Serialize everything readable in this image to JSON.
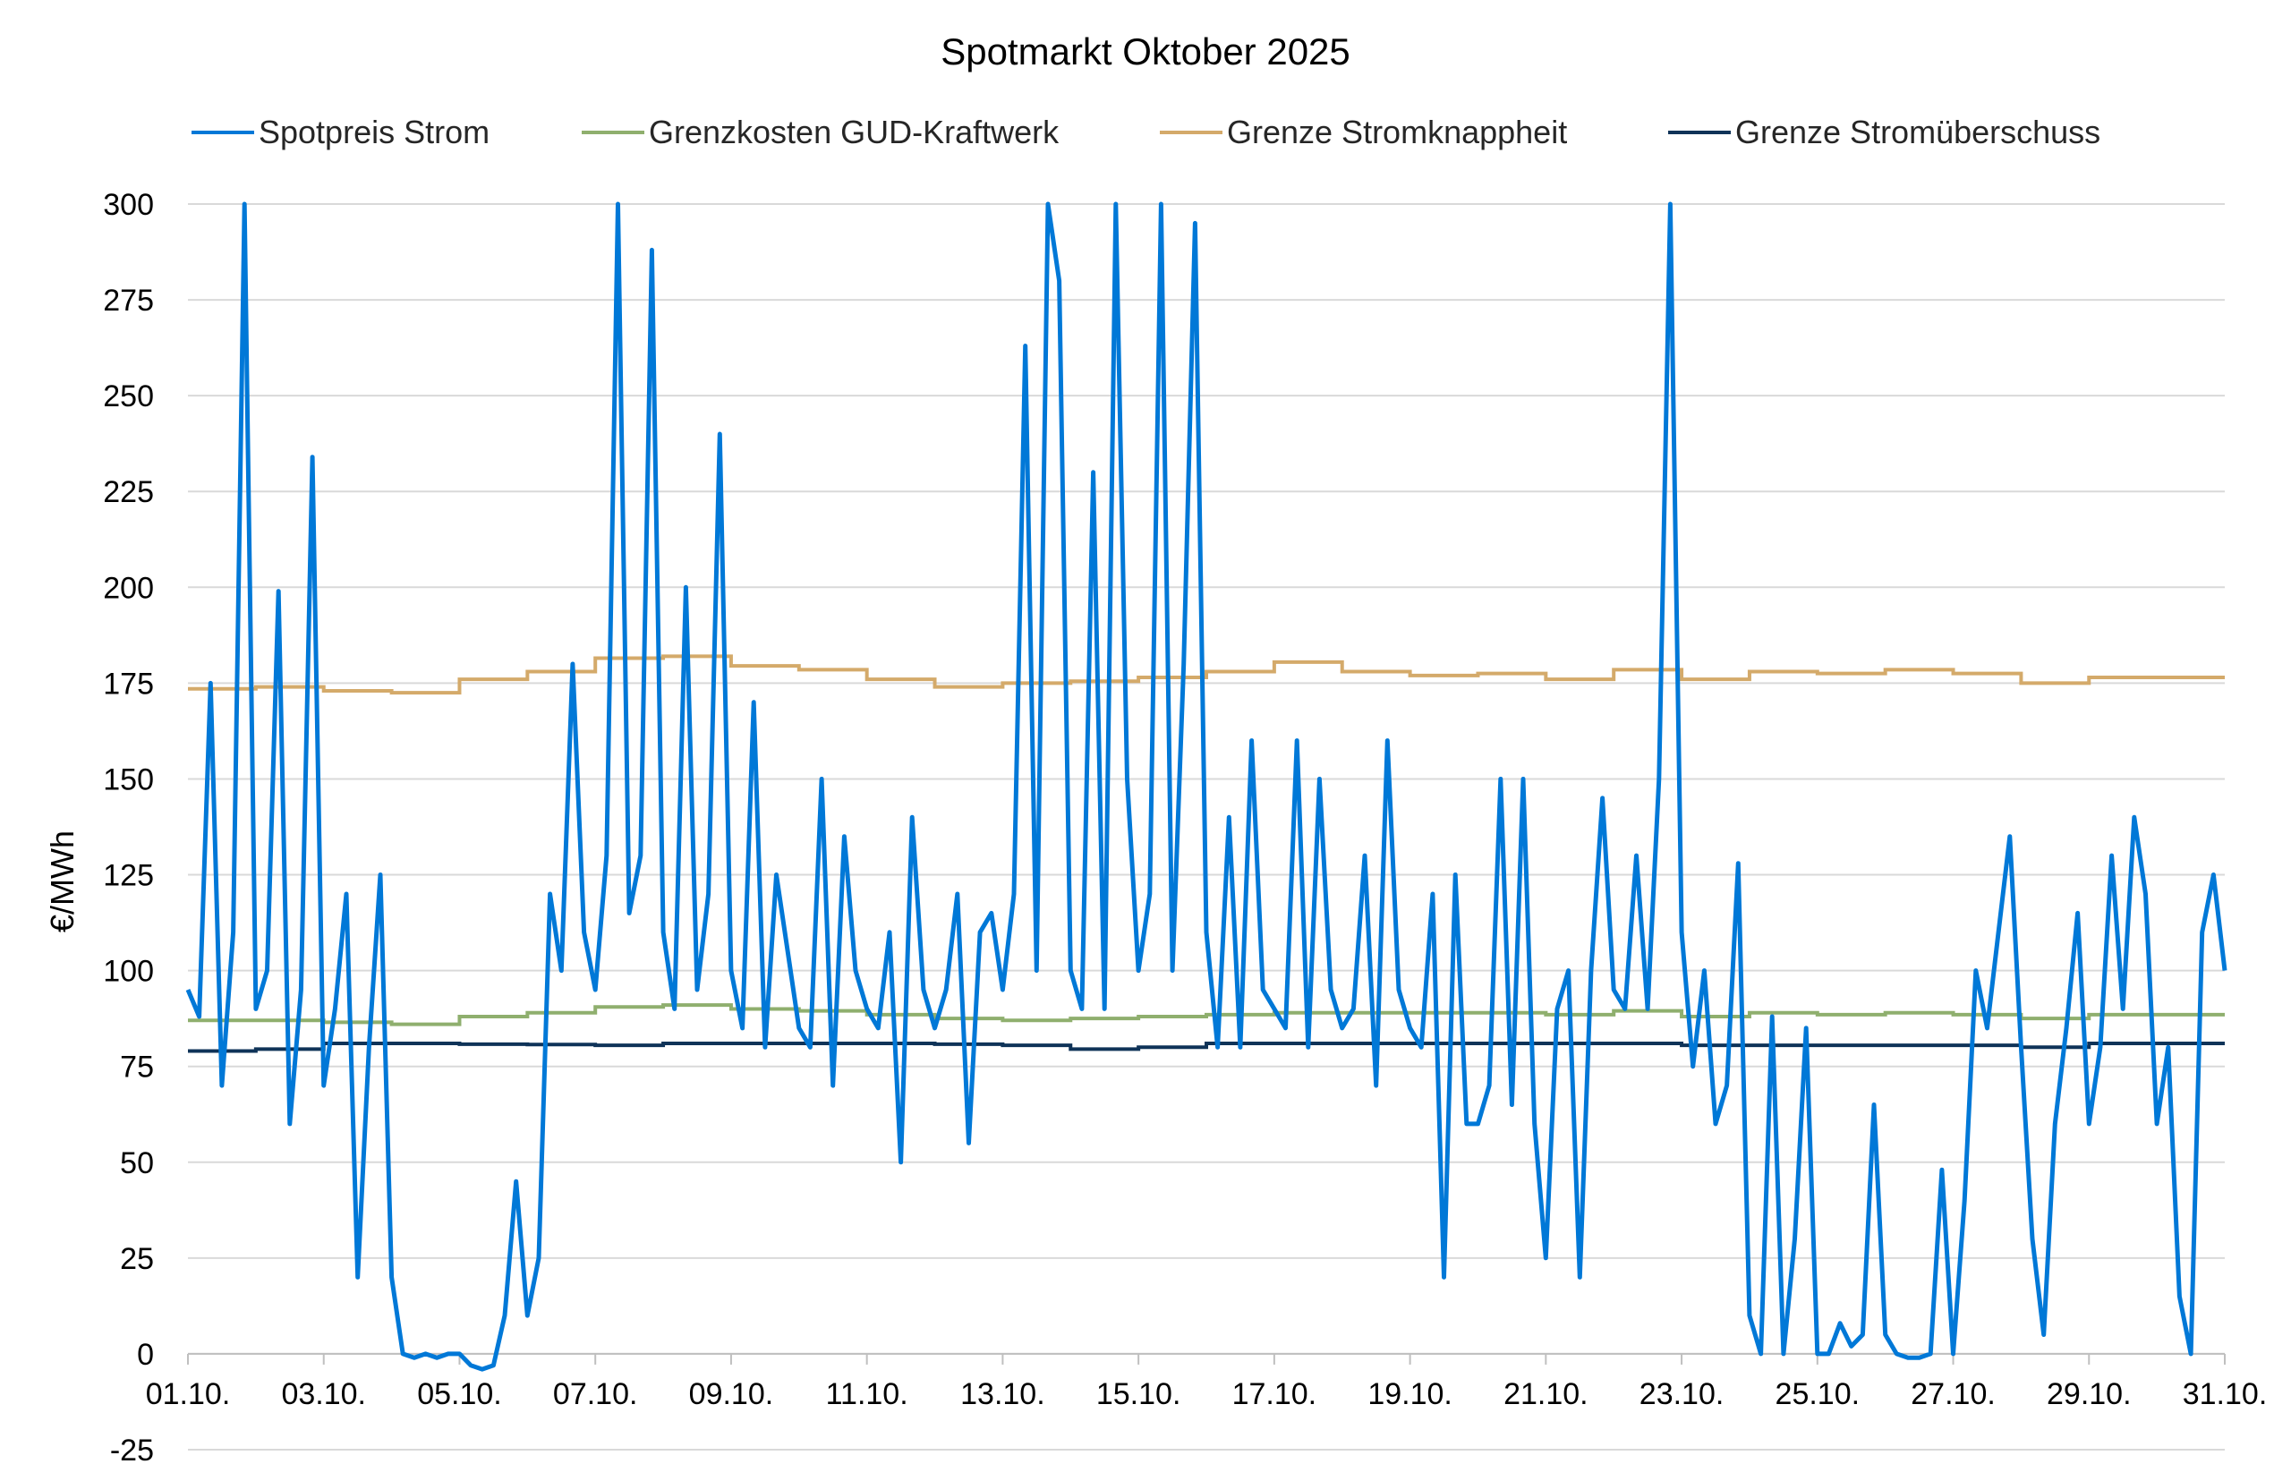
{
  "chart_data": {
    "type": "line",
    "title": "Spotmarkt Oktober 2025",
    "xlabel": "",
    "ylabel": "€/MWh",
    "ylim": [
      -25,
      300
    ],
    "yticks": [
      -25,
      0,
      25,
      50,
      75,
      100,
      125,
      150,
      175,
      200,
      225,
      250,
      275,
      300
    ],
    "xlim_days": [
      "01.10.",
      "31.10."
    ],
    "xtick_labels": [
      "01.10.",
      "03.10.",
      "05.10.",
      "07.10.",
      "09.10.",
      "11.10.",
      "13.10.",
      "15.10.",
      "17.10.",
      "19.10.",
      "21.10.",
      "23.10.",
      "25.10.",
      "27.10.",
      "29.10.",
      "31.10."
    ],
    "grid": "horizontal",
    "legend_position": "top",
    "spot_sample_hours": [
      0,
      4,
      8,
      12,
      16,
      20
    ],
    "series": [
      {
        "name": "Spotpreis Strom",
        "color": "#0078d7",
        "style": "line",
        "values_by_day": [
          [
            95,
            88,
            175,
            70,
            110,
            300
          ],
          [
            90,
            100,
            199,
            60,
            95,
            234
          ],
          [
            70,
            90,
            120,
            20,
            80,
            125
          ],
          [
            20,
            0,
            -1,
            0,
            -1,
            0
          ],
          [
            0,
            -3,
            -4,
            -3,
            10,
            45
          ],
          [
            10,
            25,
            120,
            100,
            180,
            110
          ],
          [
            95,
            130,
            300,
            115,
            130,
            288
          ],
          [
            110,
            90,
            200,
            95,
            120,
            240
          ],
          [
            100,
            85,
            170,
            80,
            125,
            105
          ],
          [
            85,
            80,
            150,
            70,
            135,
            100
          ],
          [
            90,
            85,
            110,
            50,
            140,
            95
          ],
          [
            85,
            95,
            120,
            55,
            110,
            115
          ],
          [
            95,
            120,
            263,
            100,
            300,
            280
          ],
          [
            100,
            90,
            230,
            90,
            300,
            150
          ],
          [
            100,
            120,
            300,
            100,
            180,
            295
          ],
          [
            110,
            80,
            140,
            80,
            160,
            95
          ],
          [
            90,
            85,
            160,
            80,
            150,
            95
          ],
          [
            85,
            90,
            130,
            70,
            160,
            95
          ],
          [
            85,
            80,
            120,
            20,
            125,
            60
          ],
          [
            60,
            70,
            150,
            65,
            150,
            60
          ],
          [
            25,
            90,
            100,
            20,
            100,
            145
          ],
          [
            95,
            90,
            130,
            90,
            150,
            300
          ],
          [
            110,
            75,
            100,
            60,
            70,
            128
          ],
          [
            10,
            0,
            88,
            0,
            30,
            85
          ],
          [
            0,
            0,
            8,
            2,
            5,
            65
          ],
          [
            5,
            0,
            -1,
            -1,
            0,
            48
          ],
          [
            0,
            40,
            100,
            85,
            110,
            135
          ],
          [
            80,
            30,
            5,
            60,
            85,
            115
          ],
          [
            60,
            80,
            130,
            90,
            140,
            120
          ],
          [
            60,
            80,
            15,
            0,
            110,
            125
          ]
        ],
        "final_value": 100
      },
      {
        "name": "Grenzkosten GUD-Kraftwerk",
        "color": "#8faf6e",
        "style": "step",
        "daily_values": [
          87,
          87,
          86.5,
          86,
          88,
          89,
          90.5,
          91,
          90,
          89.5,
          88.5,
          87.5,
          87,
          87.5,
          88,
          88.5,
          89,
          89,
          89,
          89,
          88.5,
          89.5,
          88,
          89,
          88.5,
          89,
          88.5,
          87.5,
          88.5,
          88.5
        ]
      },
      {
        "name": "Grenze Stromknappheit",
        "color": "#d4aa6a",
        "style": "step",
        "daily_values": [
          173.5,
          174,
          173,
          172.5,
          176,
          178,
          181.5,
          182,
          179.5,
          178.5,
          176,
          174,
          175,
          175.5,
          176.5,
          178,
          180.5,
          178,
          177,
          177.5,
          176,
          178.5,
          176,
          178,
          177.5,
          178.5,
          177.5,
          175,
          176.5,
          176.5
        ]
      },
      {
        "name": "Grenze Stromüberschuss",
        "color": "#0f3358",
        "style": "step",
        "daily_values": [
          79,
          79.5,
          81,
          81,
          80.8,
          80.7,
          80.5,
          81,
          81,
          81,
          81,
          80.8,
          80.5,
          79.5,
          80,
          81,
          81,
          81,
          81,
          81,
          81,
          81,
          80.5,
          80.5,
          80.5,
          80.5,
          80.5,
          80,
          81,
          81
        ]
      }
    ]
  }
}
